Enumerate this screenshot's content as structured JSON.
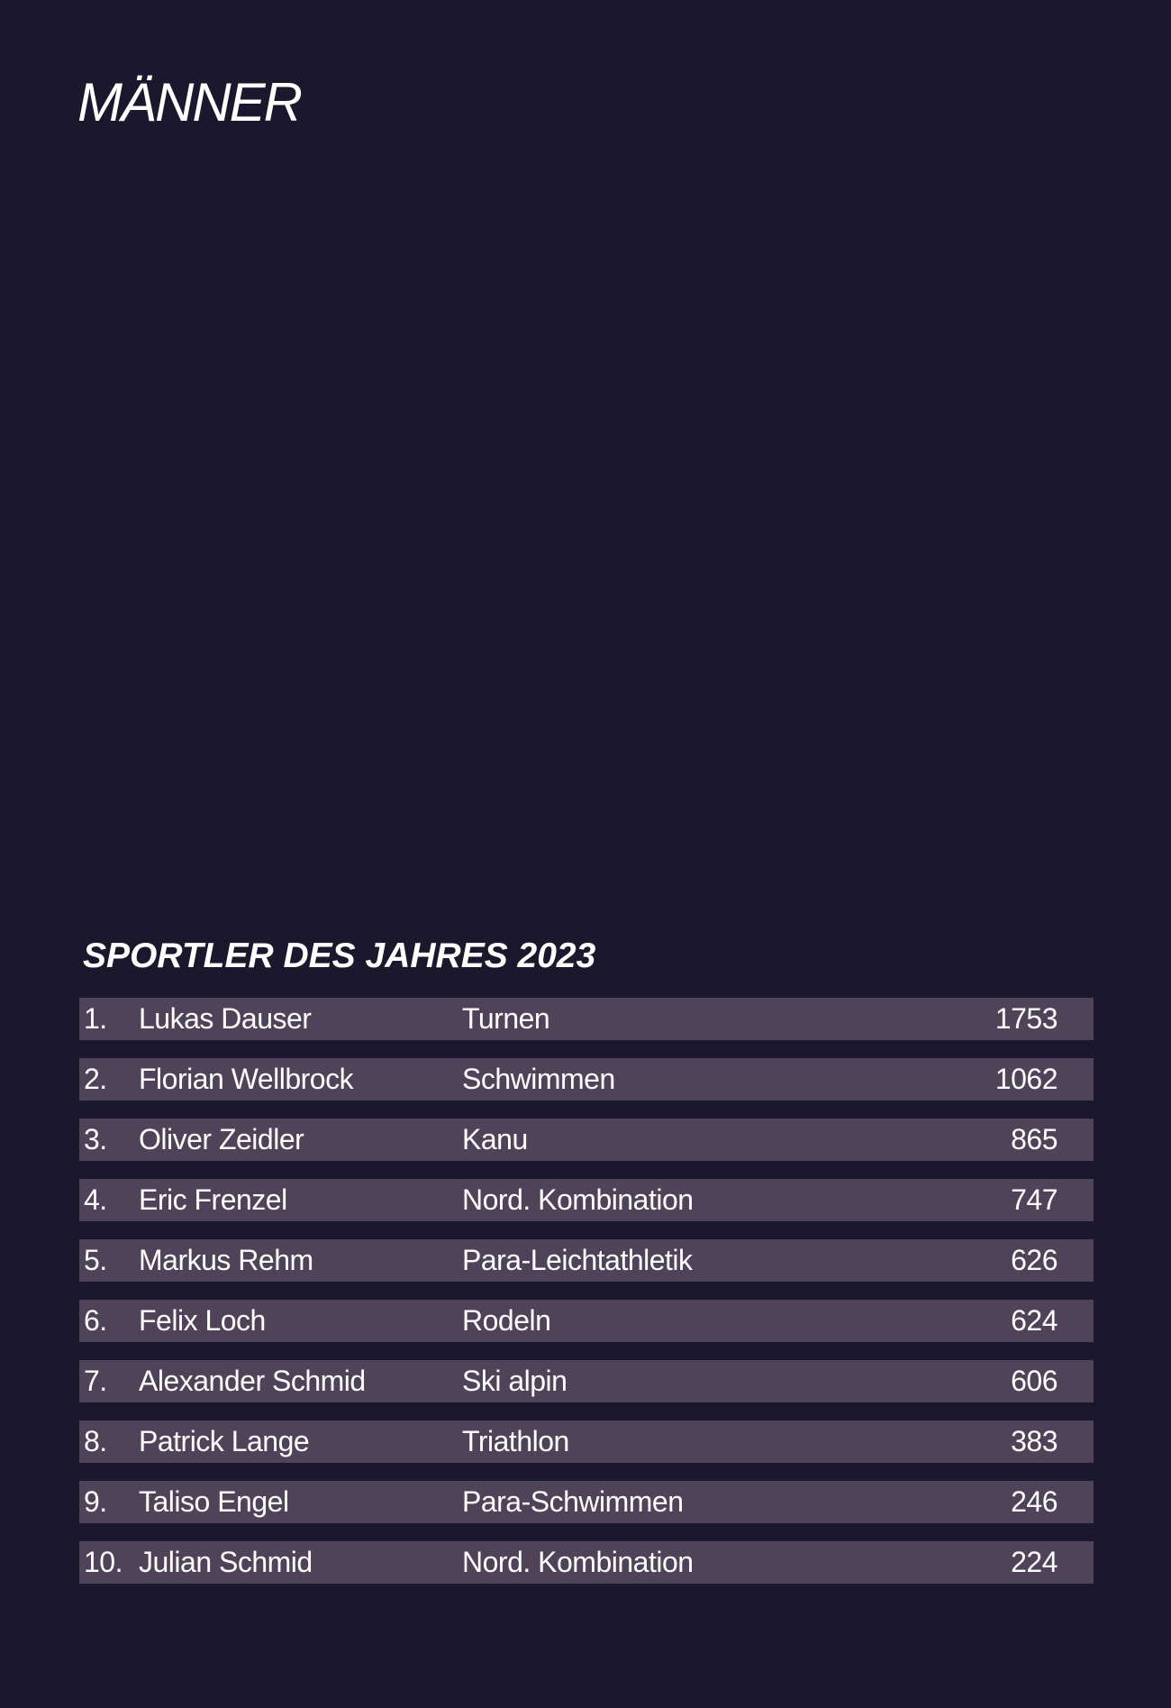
{
  "page": {
    "heading": "MÄNNER",
    "list_title": "SPORTLER DES JAHRES 2023",
    "colors": {
      "background": "#1b182d",
      "row_background": "#4f4359",
      "text": "#ffffff"
    }
  },
  "ranking": [
    {
      "rank": "1.",
      "name": "Lukas Dauser",
      "sport": "Turnen",
      "points": "1753"
    },
    {
      "rank": "2.",
      "name": "Florian Wellbrock",
      "sport": "Schwimmen",
      "points": "1062"
    },
    {
      "rank": "3.",
      "name": "Oliver Zeidler",
      "sport": "Kanu",
      "points": "865"
    },
    {
      "rank": "4.",
      "name": "Eric Frenzel",
      "sport": "Nord. Kombination",
      "points": "747"
    },
    {
      "rank": "5.",
      "name": "Markus Rehm",
      "sport": "Para-Leichtathletik",
      "points": "626"
    },
    {
      "rank": "6.",
      "name": "Felix Loch",
      "sport": "Rodeln",
      "points": "624"
    },
    {
      "rank": "7.",
      "name": "Alexander Schmid",
      "sport": "Ski alpin",
      "points": "606"
    },
    {
      "rank": "8.",
      "name": "Patrick Lange",
      "sport": "Triathlon",
      "points": "383"
    },
    {
      "rank": "9.",
      "name": "Taliso Engel",
      "sport": "Para-Schwimmen",
      "points": "246"
    },
    {
      "rank": "10.",
      "name": "Julian Schmid",
      "sport": "Nord. Kombination",
      "points": "224"
    }
  ]
}
